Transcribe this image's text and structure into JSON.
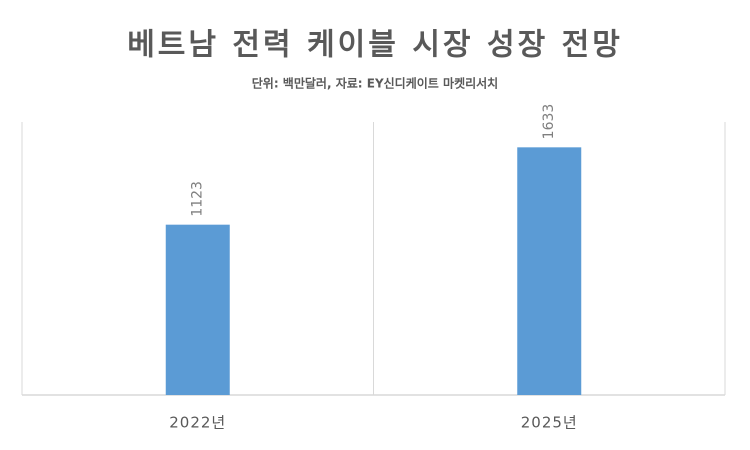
{
  "chart_data": {
    "type": "bar",
    "title": "베트남 전력 케이블 시장 성장 전망",
    "subtitle": "단위: 백만달러, 자료: EY신디케이트 마켓리서치",
    "categories": [
      "2022년",
      "2025년"
    ],
    "values": [
      1123,
      1633
    ],
    "color": "#5b9bd5",
    "ylim": [
      0,
      1800
    ]
  }
}
